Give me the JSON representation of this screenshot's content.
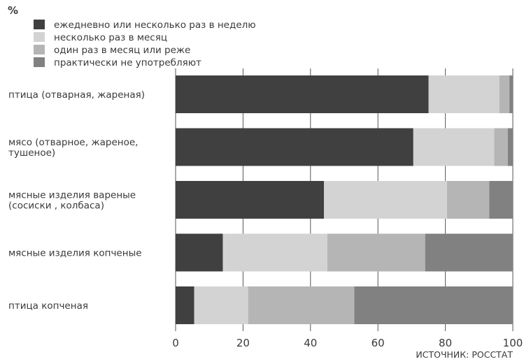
{
  "chart_data": {
    "type": "bar",
    "orientation": "horizontal",
    "stacked": true,
    "unit_label": "%",
    "source": "ИСТОЧНИК: РОССТАТ",
    "categories": [
      [
        "птица (отварная, жареная)"
      ],
      [
        "мясо (отварное, жареное,",
        "тушеное)"
      ],
      [
        "мясные изделия вареные",
        "(сосиски , колбаса)"
      ],
      [
        "мясные изделия копченые"
      ],
      [
        "птица копченая"
      ]
    ],
    "series": [
      {
        "name": "ежедневно или несколько раз в неделю",
        "color": "#404040",
        "values": [
          75,
          70.5,
          44,
          14,
          5.5
        ]
      },
      {
        "name": "несколько раз в месяц",
        "color": "#d3d3d3",
        "values": [
          21,
          24,
          36.5,
          31,
          16
        ]
      },
      {
        "name": "один раз в месяц или реже",
        "color": "#b5b5b5",
        "values": [
          3,
          4,
          12.5,
          29,
          31.5
        ]
      },
      {
        "name": "практически не употребляют",
        "color": "#818181",
        "values": [
          1,
          1.5,
          7,
          26,
          47
        ]
      }
    ],
    "xlim": [
      0,
      100
    ],
    "xticks": [
      0,
      20,
      40,
      60,
      80,
      100
    ],
    "grid": true,
    "legend_position": "top-left"
  }
}
